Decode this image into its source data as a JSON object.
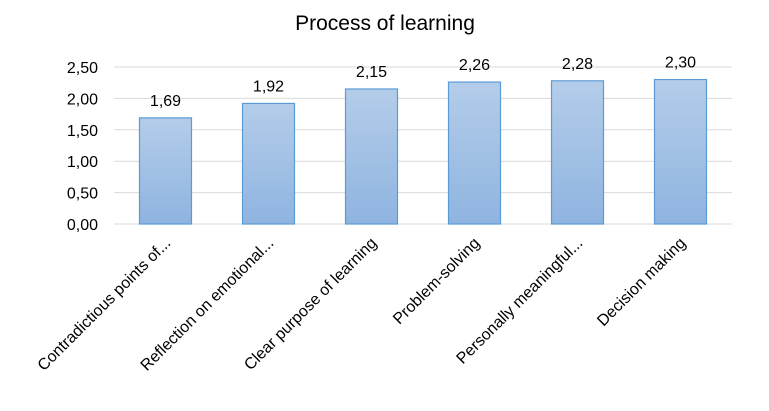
{
  "chart_data": {
    "type": "bar",
    "title": "Process of learning",
    "categories": [
      "Contradictious points of...",
      "Reflection on emotional...",
      "Clear purpose of learning",
      "Problem-solving",
      "Personally meaningful...",
      "Decision making"
    ],
    "values": [
      1.69,
      1.92,
      2.15,
      2.26,
      2.28,
      2.3
    ],
    "data_labels": [
      "1,69",
      "1,92",
      "2,15",
      "2,26",
      "2,28",
      "2,30"
    ],
    "y_ticks": [
      0,
      0.5,
      1,
      1.5,
      2,
      2.5
    ],
    "y_tick_labels": [
      "0,00",
      "0,50",
      "1,00",
      "1,50",
      "2,00",
      "2,50"
    ],
    "xlabel": "",
    "ylabel": "",
    "ylim": [
      0,
      2.5
    ],
    "grid": true,
    "legend": "none",
    "colors": {
      "bar_top": "#b4cdea",
      "bar_bottom": "#8fb4e0",
      "bar_border": "#5b9bd5",
      "grid": "#d9d9d9"
    }
  }
}
